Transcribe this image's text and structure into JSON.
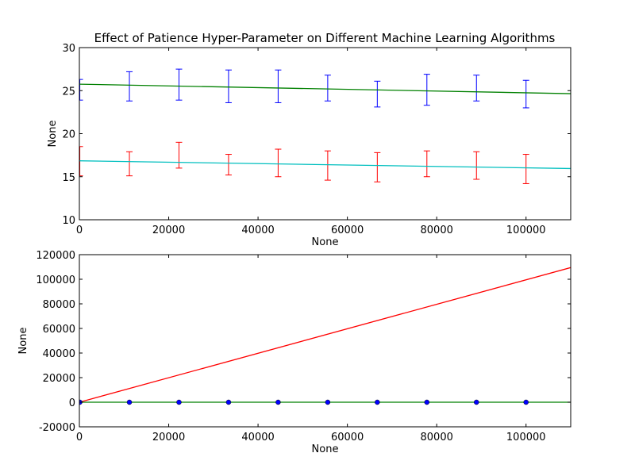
{
  "figure": {
    "title": "Effect of Patience Hyper-Parameter on Different Machine Learning Algorithms"
  },
  "chart_data": [
    {
      "type": "line",
      "title": "Effect of Patience Hyper-Parameter on Different Machine Learning Algorithms",
      "xlabel": "None",
      "ylabel": "None",
      "xlim": [
        0,
        110000
      ],
      "ylim": [
        10,
        30
      ],
      "xticks": [
        0,
        20000,
        40000,
        60000,
        80000,
        100000
      ],
      "yticks": [
        10,
        15,
        20,
        25,
        30
      ],
      "grid": false,
      "series": [
        {
          "kind": "errorbar",
          "color": "#0000ff",
          "x": [
            100,
            11200,
            22300,
            33400,
            44500,
            55600,
            66700,
            77800,
            88900,
            100000
          ],
          "y": [
            25.1,
            25.5,
            25.7,
            25.5,
            25.5,
            25.3,
            24.6,
            25.1,
            25.3,
            24.6
          ],
          "yerr": [
            1.2,
            1.7,
            1.8,
            1.9,
            1.9,
            1.5,
            1.5,
            1.8,
            1.5,
            1.6
          ]
        },
        {
          "kind": "errorbar",
          "color": "#ff0000",
          "x": [
            100,
            11200,
            22300,
            33400,
            44500,
            55600,
            66700,
            77800,
            88900,
            100000
          ],
          "y": [
            16.8,
            16.5,
            17.5,
            16.4,
            16.6,
            16.3,
            16.1,
            16.5,
            16.3,
            15.9
          ],
          "yerr": [
            1.7,
            1.4,
            1.5,
            1.2,
            1.6,
            1.7,
            1.7,
            1.5,
            1.6,
            1.7
          ]
        },
        {
          "kind": "line",
          "color": "#008000",
          "x": [
            0,
            110000
          ],
          "y": [
            25.75,
            24.65
          ]
        },
        {
          "kind": "line",
          "color": "#00bfbf",
          "x": [
            0,
            110000
          ],
          "y": [
            16.85,
            15.95
          ]
        }
      ]
    },
    {
      "type": "line",
      "title": "",
      "xlabel": "None",
      "ylabel": "None",
      "xlim": [
        0,
        110000
      ],
      "ylim": [
        -20000,
        120000
      ],
      "xticks": [
        0,
        20000,
        40000,
        60000,
        80000,
        100000
      ],
      "yticks": [
        -20000,
        0,
        20000,
        40000,
        60000,
        80000,
        100000,
        120000
      ],
      "grid": false,
      "series": [
        {
          "kind": "line",
          "color": "#ff0000",
          "x": [
            0,
            110000
          ],
          "y": [
            0,
            109500
          ]
        },
        {
          "kind": "line",
          "color": "#008000",
          "x": [
            0,
            110000
          ],
          "y": [
            0,
            0
          ]
        },
        {
          "kind": "markers",
          "color": "#0000ff",
          "x": [
            100,
            11200,
            22300,
            33400,
            44500,
            55600,
            66700,
            77800,
            88900,
            100000
          ],
          "y": [
            0,
            0,
            0,
            0,
            0,
            0,
            0,
            0,
            0,
            0
          ]
        }
      ]
    }
  ]
}
